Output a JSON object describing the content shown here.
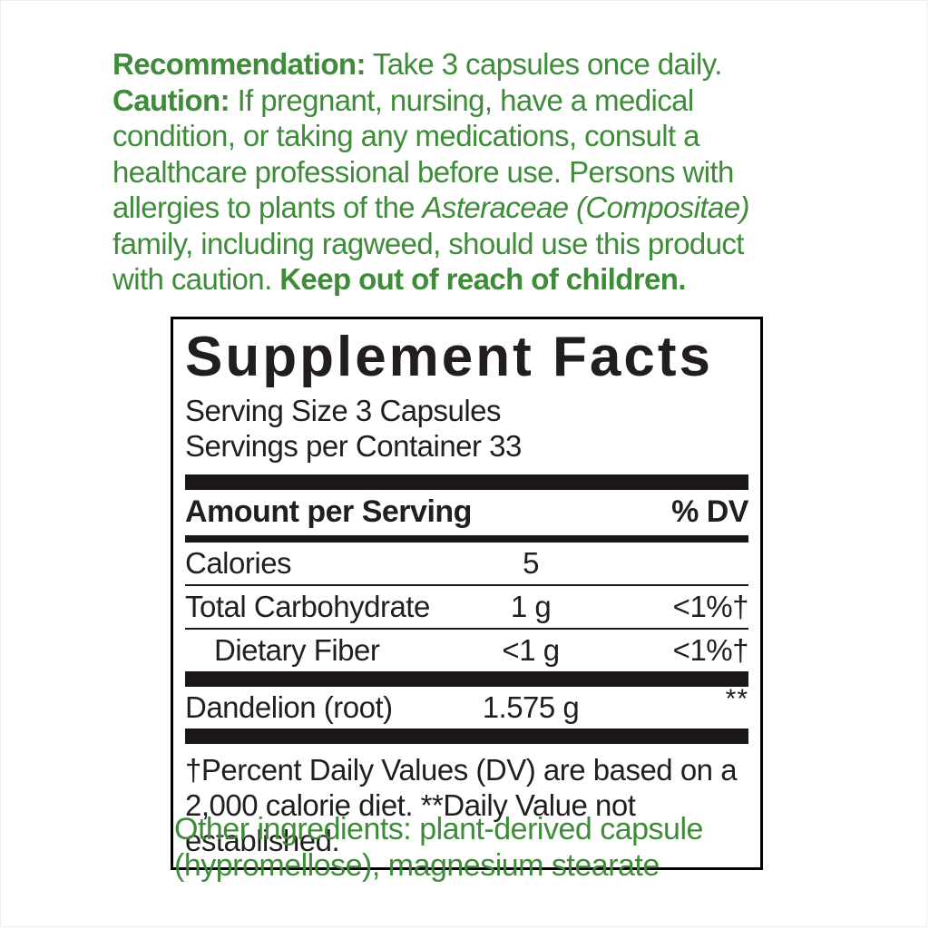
{
  "colors": {
    "green_text": "#3e8b39",
    "label_black": "#1b1718",
    "background": "#ffffff"
  },
  "advisory": {
    "lines": [
      [
        {
          "style": "bold",
          "text": "Recommendation:"
        },
        {
          "style": "normal",
          "text": " Take 3 capsules once daily."
        }
      ],
      [
        {
          "style": "bold",
          "text": "Caution:"
        },
        {
          "style": "normal",
          "text": " If pregnant, nursing, have a medical"
        }
      ],
      [
        {
          "style": "normal",
          "text": "condition, or taking any medications, consult a"
        }
      ],
      [
        {
          "style": "normal",
          "text": "healthcare professional before use. Persons with"
        }
      ],
      [
        {
          "style": "normal",
          "text": "allergies to plants of the "
        },
        {
          "style": "italic",
          "text": "Asteraceae (Compositae)"
        }
      ],
      [
        {
          "style": "normal",
          "text": "family, including ragweed, should use this product"
        }
      ],
      [
        {
          "style": "normal",
          "text": "with caution. "
        },
        {
          "style": "bold",
          "text": "Keep out of reach of children."
        }
      ]
    ]
  },
  "supplement_facts": {
    "title": "Supplement Facts",
    "serving_size": "Serving Size 3 Capsules",
    "servings_per_container": "Servings per Container 33",
    "header": {
      "amount_label": "Amount per Serving",
      "dv_label": "% DV"
    },
    "rows": [
      {
        "name": "Calories",
        "amount": "5",
        "dv": "",
        "indent": false,
        "dv_sup": false,
        "separator_after": "thin"
      },
      {
        "name": "Total Carbohydrate",
        "amount": "1 g",
        "dv": "<1%†",
        "indent": false,
        "dv_sup": false,
        "separator_after": "thin"
      },
      {
        "name": "Dietary Fiber",
        "amount": "<1 g",
        "dv": "<1%†",
        "indent": true,
        "dv_sup": false,
        "separator_after": "thick"
      },
      {
        "name": "Dandelion (root)",
        "amount": "1.575 g",
        "dv": "**",
        "indent": false,
        "dv_sup": true,
        "separator_after": "thick"
      }
    ],
    "footnote_lines": [
      "†Percent Daily Values (DV) are based on a",
      "2,000 calorie diet. **Daily Value not established."
    ]
  },
  "other_ingredients": {
    "lines": [
      "Other ingredients: plant-derived capsule",
      "(hypromellose), magnesium stearate"
    ]
  }
}
